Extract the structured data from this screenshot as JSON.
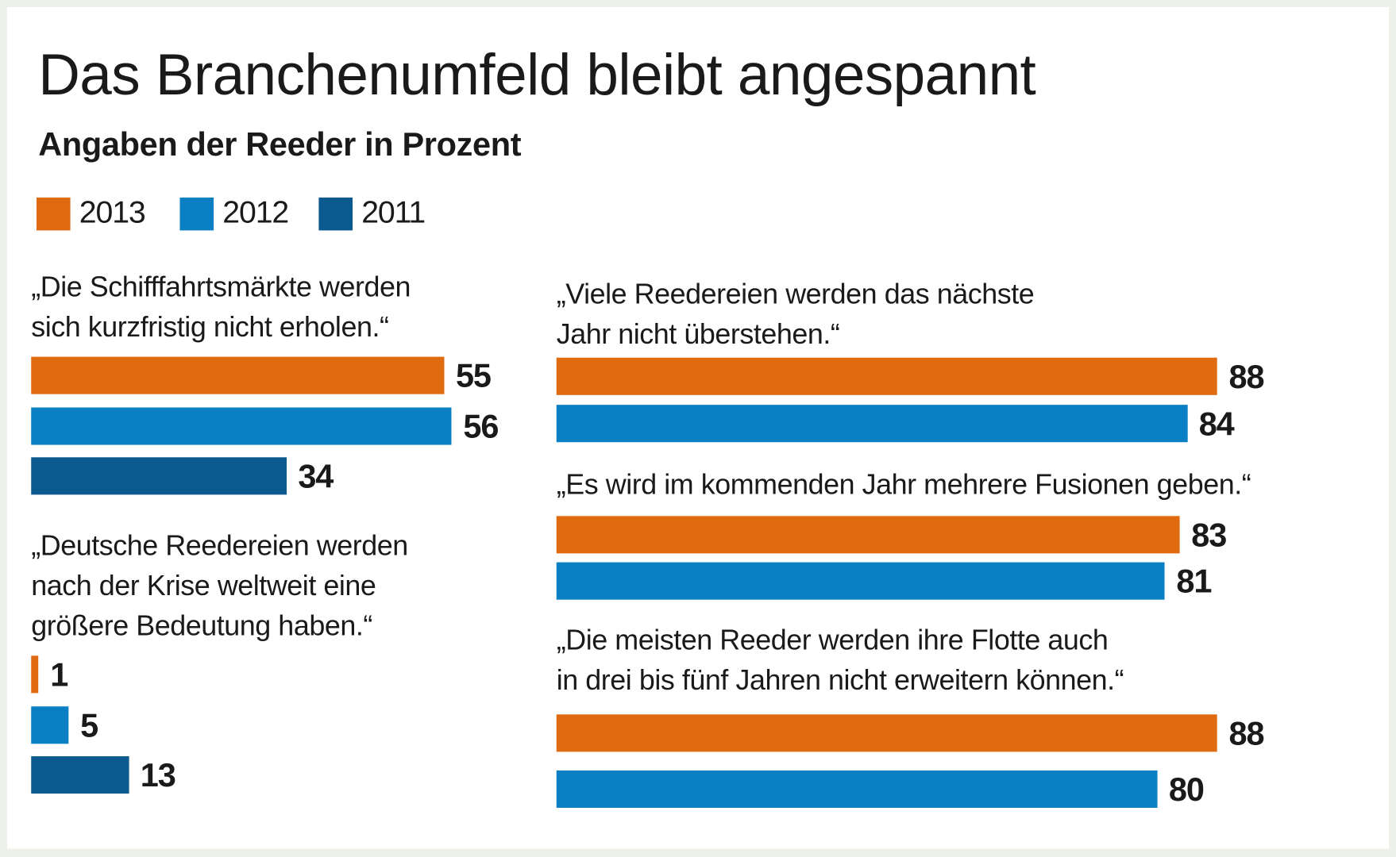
{
  "chart_data": {
    "type": "bar",
    "orientation": "horizontal",
    "title": "Das Branchenumfeld bleibt angespannt",
    "subtitle": "Angaben der Reeder in Prozent",
    "legend": [
      {
        "name": "2013",
        "color": "#e06a10"
      },
      {
        "name": "2012",
        "color": "#0a7fc4"
      },
      {
        "name": "2011",
        "color": "#0a5a8f"
      }
    ],
    "legend_placement": "top-left",
    "grid": false,
    "groups": [
      {
        "quote": [
          "„Die Schifffahrtsmärkte werden",
          "sich kurzfristig nicht erholen.“"
        ],
        "values": [
          {
            "series": "2013",
            "value": 55
          },
          {
            "series": "2012",
            "value": 56
          },
          {
            "series": "2011",
            "value": 34
          }
        ]
      },
      {
        "quote": [
          "„Deutsche Reedereien werden",
          "nach der Krise weltweit eine",
          "größere Bedeutung haben.“"
        ],
        "values": [
          {
            "series": "2013",
            "value": 1
          },
          {
            "series": "2012",
            "value": 5
          },
          {
            "series": "2011",
            "value": 13
          }
        ]
      },
      {
        "quote": [
          "„Viele Reedereien werden das nächste",
          "Jahr nicht überstehen.“"
        ],
        "values": [
          {
            "series": "2013",
            "value": 88
          },
          {
            "series": "2012",
            "value": 84
          }
        ]
      },
      {
        "quote": [
          "„Es wird im kommenden Jahr mehrere Fusionen geben.“"
        ],
        "values": [
          {
            "series": "2013",
            "value": 83
          },
          {
            "series": "2012",
            "value": 81
          }
        ]
      },
      {
        "quote": [
          "„Die meisten Reeder werden ihre Flotte auch",
          "in drei bis fünf Jahren nicht erweitern können.“"
        ],
        "values": [
          {
            "series": "2013",
            "value": 88
          },
          {
            "series": "2012",
            "value": 80
          }
        ]
      }
    ],
    "xlim": [
      0,
      100
    ]
  }
}
